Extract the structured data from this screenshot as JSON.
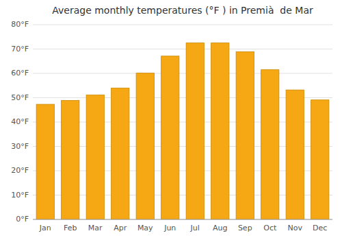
{
  "chart_data": {
    "type": "bar",
    "title": "Average monthly temperatures (°F ) in Premià  de Mar",
    "categories": [
      "Jan",
      "Feb",
      "Mar",
      "Apr",
      "May",
      "Jun",
      "Jul",
      "Aug",
      "Sep",
      "Oct",
      "Nov",
      "Dec"
    ],
    "values": [
      47.3,
      48.9,
      51.1,
      54.0,
      60.1,
      67.1,
      72.5,
      72.5,
      68.9,
      61.5,
      53.2,
      49.1
    ],
    "color": "#F5A814",
    "ylim": [
      0,
      80
    ],
    "yticks": [
      {
        "value": 0,
        "label": "0°F"
      },
      {
        "value": 10,
        "label": "10°F"
      },
      {
        "value": 20,
        "label": "20°F"
      },
      {
        "value": 30,
        "label": "30°F"
      },
      {
        "value": 40,
        "label": "40°F"
      },
      {
        "value": 50,
        "label": "50°F"
      },
      {
        "value": 60,
        "label": "60°F"
      },
      {
        "value": 70,
        "label": "70°F"
      },
      {
        "value": 80,
        "label": "80°F"
      }
    ],
    "grid": true
  }
}
